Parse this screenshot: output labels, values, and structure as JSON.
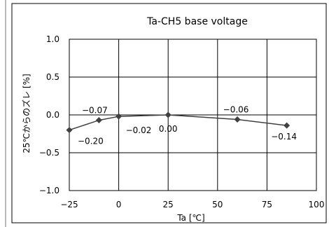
{
  "chart_data": {
    "type": "line",
    "title": "Ta-CH5 base voltage",
    "xlabel": "Ta [℃]",
    "ylabel": "25℃からのズレ [%]",
    "xlim": [
      -25,
      100
    ],
    "ylim": [
      -1.0,
      1.0
    ],
    "x_ticks": [
      -25,
      0,
      25,
      50,
      75,
      100
    ],
    "x_tick_labels": [
      "−25",
      "0",
      "25",
      "50",
      "75",
      "100"
    ],
    "y_ticks": [
      1.0,
      0.5,
      0.0,
      -0.5,
      -1.0
    ],
    "y_tick_labels": [
      "1.0",
      "0.5",
      "0.0",
      "−0.5",
      "−1.0"
    ],
    "grid": true,
    "legend": "none",
    "series": [
      {
        "x": [
          -25,
          -10,
          0,
          25,
          60,
          85
        ],
        "values": [
          -0.2,
          -0.07,
          -0.02,
          0.0,
          -0.06,
          -0.14
        ],
        "labels": [
          "−0.20",
          "−0.07",
          "−0.02",
          "0.00",
          "−0.06",
          "−0.14"
        ],
        "color": "#404040",
        "marker": "diamond"
      }
    ]
  }
}
